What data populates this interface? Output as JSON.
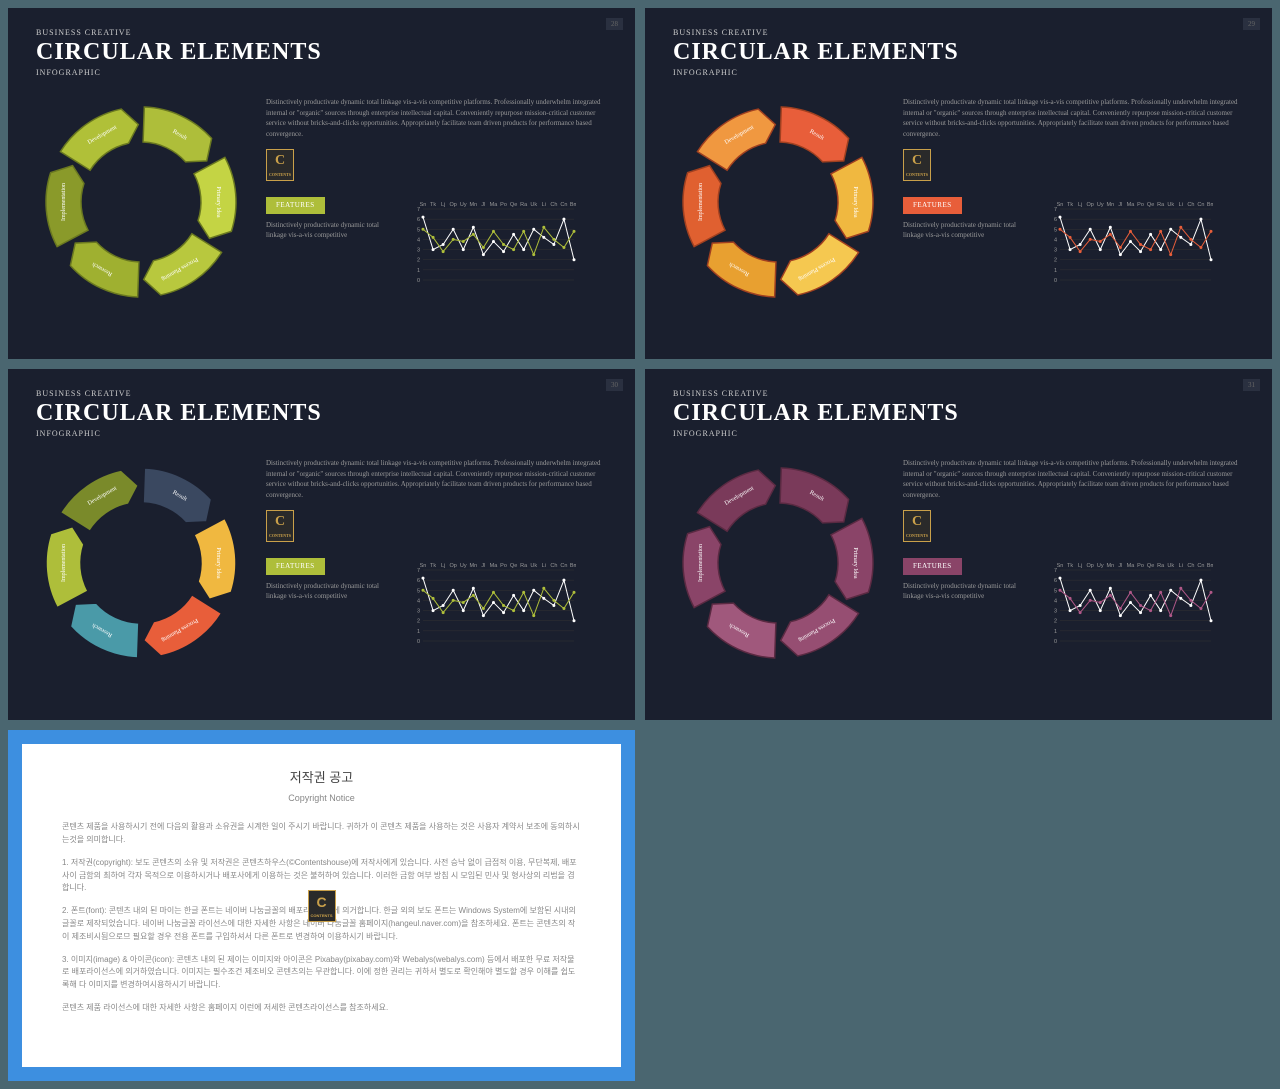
{
  "slides": [
    {
      "subtitle_top": "BUSINESS CREATIVE",
      "title": "CIRCULAR ELEMENTS",
      "subtitle_bottom": "INFOGRAPHIC",
      "desc": "Distinctively productivate dynamic total linkage vis-a-vis competitive platforms. Professionally underwhelm integrated internal or \"organic\" sources through enterprise intellectual capital. Conveniently repurpose mission-critical customer service without bricks-and-clicks opportunities. Appropriately facilitate team driven products for performance based convergence.",
      "features_label": "FEATURES",
      "features_desc": "Distinctively productivate dynamic total linkage vis-a-vis competitive",
      "page_num": "28",
      "circle": {
        "segments": [
          "Result",
          "Primary Idea",
          "Process Planning",
          "Research",
          "Implementation",
          "Development"
        ],
        "colors": [
          "#aebe3a",
          "#c4d444",
          "#b8c83e",
          "#9fb030",
          "#8a9a2a",
          "#b0c038"
        ],
        "stroke": "#6a7820"
      },
      "features_bg": "#aebe3a",
      "chart": {
        "categories": [
          "Sn",
          "Tk",
          "Lj",
          "Op",
          "Uy",
          "Mn",
          "Jl",
          "Ma",
          "Po",
          "Qe",
          "Ra",
          "Uk",
          "Li",
          "Ch",
          "Cn",
          "Bm"
        ],
        "y_labels": [
          "7",
          "6",
          "5",
          "4",
          "3",
          "2",
          "1",
          "0"
        ],
        "ylim": [
          0,
          7
        ],
        "series": [
          {
            "color": "#ffffff",
            "values": [
              6.2,
              3.0,
              3.5,
              5.0,
              3.0,
              5.2,
              2.5,
              3.8,
              2.8,
              4.5,
              3.0,
              5.0,
              4.2,
              3.5,
              6.0,
              2.0
            ]
          },
          {
            "color": "#aebe3a",
            "values": [
              5.0,
              4.2,
              2.8,
              4.0,
              3.8,
              4.5,
              3.2,
              4.8,
              3.5,
              3.0,
              4.8,
              2.5,
              5.2,
              4.0,
              3.2,
              4.8
            ]
          }
        ],
        "grid_color": "#333"
      }
    },
    {
      "subtitle_top": "BUSINESS CREATIVE",
      "title": "CIRCULAR ELEMENTS",
      "subtitle_bottom": "INFOGRAPHIC",
      "desc": "Distinctively productivate dynamic total linkage vis-a-vis competitive platforms. Professionally underwhelm integrated internal or \"organic\" sources through enterprise intellectual capital. Conveniently repurpose mission-critical customer service without bricks-and-clicks opportunities. Appropriately facilitate team driven products for performance based convergence.",
      "features_label": "FEATURES",
      "features_desc": "Distinctively productivate dynamic total linkage vis-a-vis competitive",
      "page_num": "29",
      "circle": {
        "segments": [
          "Result",
          "Primary Idea",
          "Process Planning",
          "Research",
          "Implementation",
          "Development"
        ],
        "colors": [
          "#e85e3a",
          "#f0b840",
          "#f5c850",
          "#e8a030",
          "#e06030",
          "#f09840"
        ],
        "stroke": "#a04020"
      },
      "features_bg": "#e85e3a",
      "chart": {
        "categories": [
          "Sn",
          "Tk",
          "Lj",
          "Op",
          "Uy",
          "Mn",
          "Jl",
          "Ma",
          "Po",
          "Qe",
          "Ra",
          "Uk",
          "Li",
          "Ch",
          "Cn",
          "Bm"
        ],
        "y_labels": [
          "7",
          "6",
          "5",
          "4",
          "3",
          "2",
          "1",
          "0"
        ],
        "ylim": [
          0,
          7
        ],
        "series": [
          {
            "color": "#ffffff",
            "values": [
              6.2,
              3.0,
              3.5,
              5.0,
              3.0,
              5.2,
              2.5,
              3.8,
              2.8,
              4.5,
              3.0,
              5.0,
              4.2,
              3.5,
              6.0,
              2.0
            ]
          },
          {
            "color": "#e85e3a",
            "values": [
              5.0,
              4.2,
              2.8,
              4.0,
              3.8,
              4.5,
              3.2,
              4.8,
              3.5,
              3.0,
              4.8,
              2.5,
              5.2,
              4.0,
              3.2,
              4.8
            ]
          }
        ],
        "grid_color": "#333"
      }
    },
    {
      "subtitle_top": "BUSINESS CREATIVE",
      "title": "CIRCULAR ELEMENTS",
      "subtitle_bottom": "INFOGRAPHIC",
      "desc": "Distinctively productivate dynamic total linkage vis-a-vis competitive platforms. Professionally underwhelm integrated internal or \"organic\" sources through enterprise intellectual capital. Conveniently repurpose mission-critical customer service without bricks-and-clicks opportunities. Appropriately facilitate team driven products for performance based convergence.",
      "features_label": "FEATURES",
      "features_desc": "Distinctively productivate dynamic total linkage vis-a-vis competitive",
      "page_num": "30",
      "circle": {
        "segments": [
          "Result",
          "Primary Idea",
          "Process Planning",
          "Research",
          "Implementation",
          "Development"
        ],
        "colors": [
          "#3a4860",
          "#f0b840",
          "#e85e3a",
          "#4a9aa8",
          "#aebe3a",
          "#7a8a2a"
        ],
        "stroke": "#1a1f2e"
      },
      "features_bg": "#aebe3a",
      "chart": {
        "categories": [
          "Sn",
          "Tk",
          "Lj",
          "Op",
          "Uy",
          "Mn",
          "Jl",
          "Ma",
          "Po",
          "Qe",
          "Ra",
          "Uk",
          "Li",
          "Ch",
          "Cn",
          "Bm"
        ],
        "y_labels": [
          "7",
          "6",
          "5",
          "4",
          "3",
          "2",
          "1",
          "0"
        ],
        "ylim": [
          0,
          7
        ],
        "series": [
          {
            "color": "#ffffff",
            "values": [
              6.2,
              3.0,
              3.5,
              5.0,
              3.0,
              5.2,
              2.5,
              3.8,
              2.8,
              4.5,
              3.0,
              5.0,
              4.2,
              3.5,
              6.0,
              2.0
            ]
          },
          {
            "color": "#aebe3a",
            "values": [
              5.0,
              4.2,
              2.8,
              4.0,
              3.8,
              4.5,
              3.2,
              4.8,
              3.5,
              3.0,
              4.8,
              2.5,
              5.2,
              4.0,
              3.2,
              4.8
            ]
          }
        ],
        "grid_color": "#333"
      }
    },
    {
      "subtitle_top": "BUSINESS CREATIVE",
      "title": "CIRCULAR ELEMENTS",
      "subtitle_bottom": "INFOGRAPHIC",
      "desc": "Distinctively productivate dynamic total linkage vis-a-vis competitive platforms. Professionally underwhelm integrated internal or \"organic\" sources through enterprise intellectual capital. Conveniently repurpose mission-critical customer service without bricks-and-clicks opportunities. Appropriately facilitate team driven products for performance based convergence.",
      "features_label": "FEATURES",
      "features_desc": "Distinctively productivate dynamic total linkage vis-a-vis competitive",
      "page_num": "31",
      "circle": {
        "segments": [
          "Result",
          "Primary Idea",
          "Process Planning",
          "Research",
          "Implementation",
          "Development"
        ],
        "colors": [
          "#7a3a5a",
          "#8a4468",
          "#964e72",
          "#a0587c",
          "#8a4468",
          "#7a3a5a"
        ],
        "stroke": "#5a2a42"
      },
      "features_bg": "#8a4468",
      "chart": {
        "categories": [
          "Sn",
          "Tk",
          "Lj",
          "Op",
          "Uy",
          "Mn",
          "Jl",
          "Ma",
          "Po",
          "Qe",
          "Ra",
          "Uk",
          "Li",
          "Ch",
          "Cn",
          "Bm"
        ],
        "y_labels": [
          "7",
          "6",
          "5",
          "4",
          "3",
          "2",
          "1",
          "0"
        ],
        "ylim": [
          0,
          7
        ],
        "series": [
          {
            "color": "#ffffff",
            "values": [
              6.2,
              3.0,
              3.5,
              5.0,
              3.0,
              5.2,
              2.5,
              3.8,
              2.8,
              4.5,
              3.0,
              5.0,
              4.2,
              3.5,
              6.0,
              2.0
            ]
          },
          {
            "color": "#b05888",
            "values": [
              5.0,
              4.2,
              2.8,
              4.0,
              3.8,
              4.5,
              3.2,
              4.8,
              3.5,
              3.0,
              4.8,
              2.5,
              5.2,
              4.0,
              3.2,
              4.8
            ]
          }
        ],
        "grid_color": "#333"
      }
    }
  ],
  "notice": {
    "title": "저작권 공고",
    "subtitle": "Copyright Notice",
    "p1": "콘텐츠 제품을 사용하시기 전에 다음의 활용과 소유권을 시계한 일이 주시기 바랍니다. 귀하가 이 콘텐츠 제품을 사용하는 것은 사용자 계약서 보조에 동의하시는것을 의미합니다.",
    "p2": "1. 저작권(copyright): 보도 콘텐츠의 소유 및 저작권은 콘텐츠하우스(©Contentshouse)에 저작사에게 있습니다. 사전 승낙 없이 급접적 이용, 무단복제, 배포 사이 금함의 최하여 각자 목적으로 이용하시거나 배포사에게 이용하는 것은 불허하여 있습니다. 이러한 금함 여부 방침 시 모임된 민사 및 형사상의 리법을 겸합니다.",
    "p3": "2. 폰트(font): 콘텐츠 내의 된 마이는 한글 폰트는 네이버 나눔글꼴의 배포라이선스에 의거합니다. 한글 외의 보도 폰트는 Windows System에 보함된 시내의 글꼴로 제작되었습니다. 네이버 나눔글꼴 라이선스에 대한 자세한 사항은 네이버 나눔글꼴 홈페이지(hangeul.naver.com)을 참조하세요. 폰트는 콘텐츠의 작이 제조비시됨으로므 필요할 경우 전용 폰트를 구입하셔서 다른 폰트로 변경하여 이용하시기 바랍니다.",
    "p4": "3. 이미지(image) & 아이콘(icon): 콘텐츠 내의 된 제이는 이미지와 아이콘은 Pixabay(pixabay.com)와 Webalys(webalys.com) 등에서 배포한 무료 저작물로 배포라이선스에 의거하였습니다. 이미지는 필수조건 제조비오 콘텐츠의는 무관합니다. 이에 정한 권리는 귀하서 별도로 확인해야 별도할 경우 이해를 쉽도록해 다 이미지를 변경하여시용하시기 바랍니다.",
    "p5": "콘텐츠 제품 라이선스에 대한 자세한 사항은 홈페이지 이런에 저세한 콘텐츠라이선스를 참조하세요."
  },
  "badge_letter": "C",
  "badge_sub": "CONTENTS"
}
